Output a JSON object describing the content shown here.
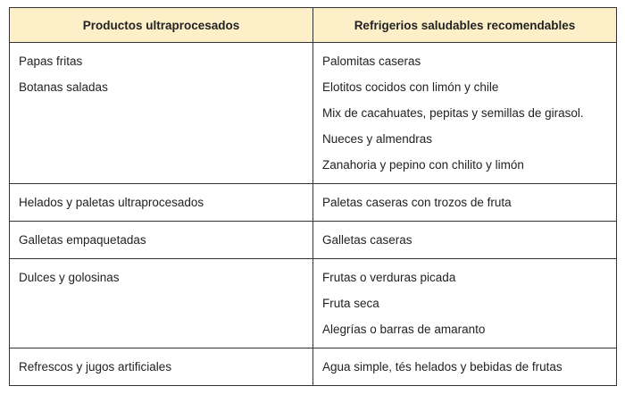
{
  "table": {
    "headers": [
      "Productos ultraprocesados",
      "Refrigerios  saludables recomendables"
    ],
    "header_color": "#fdf0c9",
    "rows": [
      {
        "left": [
          "Papas fritas",
          "Botanas saladas"
        ],
        "right": [
          "Palomitas caseras",
          "Elotitos cocidos con limón y chile",
          "Mix de cacahuates, pepitas y semillas de girasol.",
          "Nueces y almendras",
          "Zanahoria y pepino con chilito y limón"
        ]
      },
      {
        "left": [
          "Helados y paletas ultraprocesados"
        ],
        "right": [
          "Paletas caseras con trozos de fruta"
        ]
      },
      {
        "left": [
          "Galletas empaquetadas"
        ],
        "right": [
          "Galletas caseras"
        ]
      },
      {
        "left": [
          "Dulces y golosinas"
        ],
        "right": [
          "Frutas o verduras picada",
          "Fruta seca",
          "Alegrías o barras de amaranto"
        ]
      },
      {
        "left": [
          "Refrescos y jugos artificiales"
        ],
        "right": [
          "Agua simple, tés helados y bebidas de frutas"
        ]
      }
    ]
  }
}
